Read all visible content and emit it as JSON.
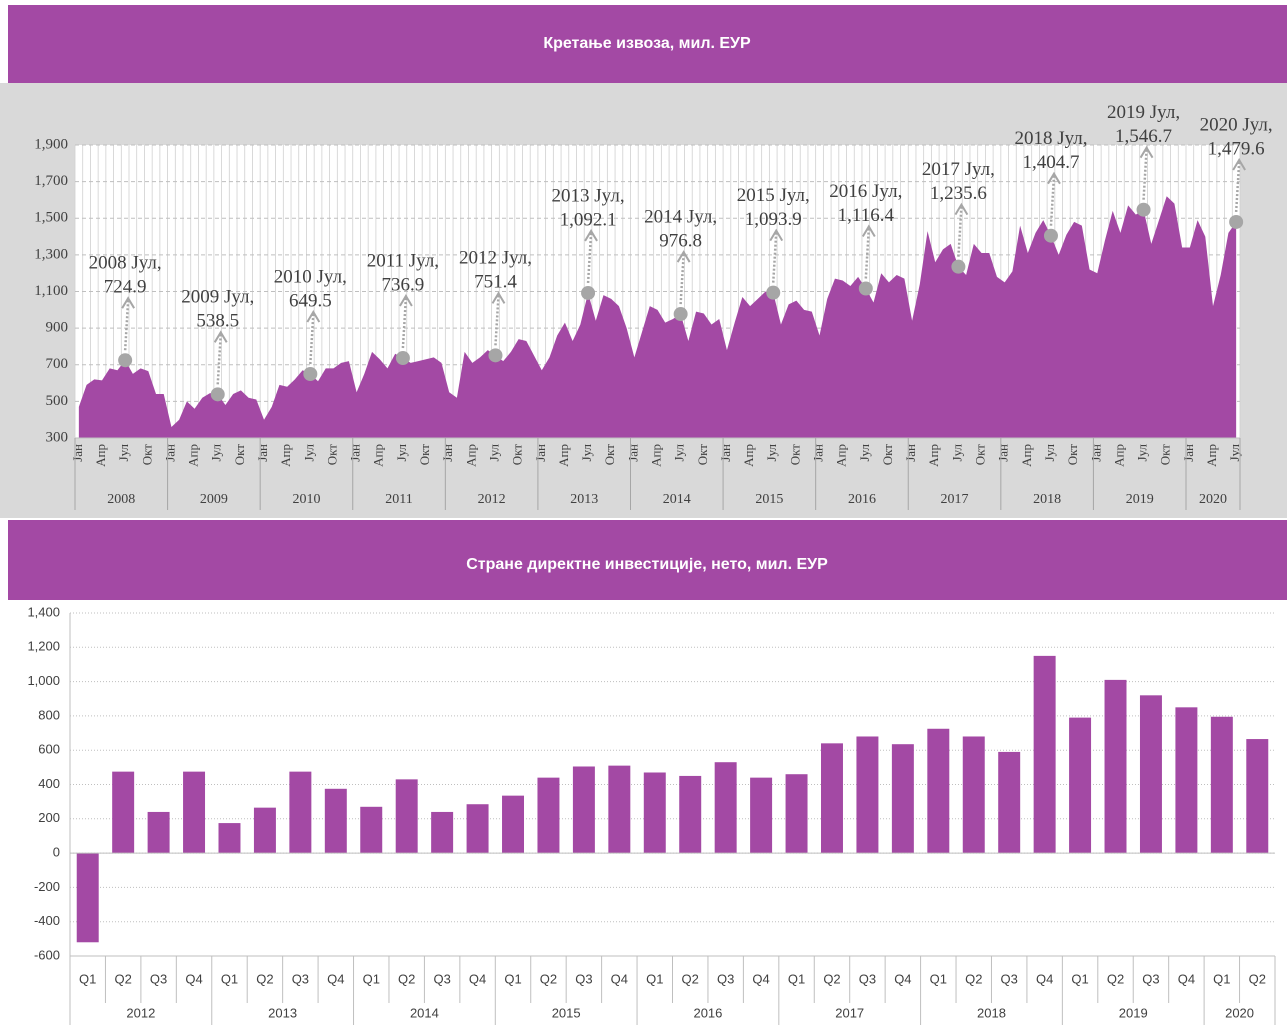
{
  "chart_data": [
    {
      "type": "area",
      "title": "Кретање извоза, мил. ЕУР",
      "color": "#a349a4",
      "marker_color": "#a6a6a6",
      "categories": [
        "Јан",
        null,
        null,
        "Апр",
        null,
        null,
        "Јул",
        null,
        null,
        "Окт",
        null,
        null,
        "Јан",
        null,
        null,
        "Апр",
        null,
        null,
        "Јул",
        null,
        null,
        "Окт",
        null,
        null,
        "Јан",
        null,
        null,
        "Апр",
        null,
        null,
        "Јул",
        null,
        null,
        "Окт",
        null,
        null,
        "Јан",
        null,
        null,
        "Апр",
        null,
        null,
        "Јул",
        null,
        null,
        "Окт",
        null,
        null,
        "Јан",
        null,
        null,
        "Апр",
        null,
        null,
        "Јул",
        null,
        null,
        "Окт",
        null,
        null,
        "Јан",
        null,
        null,
        "Апр",
        null,
        null,
        "Јул",
        null,
        null,
        "Окт",
        null,
        null,
        "Јан",
        null,
        null,
        "Апр",
        null,
        null,
        "Јул",
        null,
        null,
        "Окт",
        null,
        null,
        "Јан",
        null,
        null,
        "Апр",
        null,
        null,
        "Јул",
        null,
        null,
        "Окт",
        null,
        null,
        "Јан",
        null,
        null,
        "Апр",
        null,
        null,
        "Јул",
        null,
        null,
        "Окт",
        null,
        null,
        "Јан",
        null,
        null,
        "Апр",
        null,
        null,
        "Јул",
        null,
        null,
        "Окт",
        null,
        null,
        "Јан",
        null,
        null,
        "Апр",
        null,
        null,
        "Јул",
        null,
        null,
        "Окт",
        null,
        null,
        "Јан",
        null,
        null,
        "Апр",
        null,
        null,
        "Јул",
        null,
        null,
        "Окт",
        null,
        null,
        "Јан",
        null,
        null,
        "Апр",
        null,
        null,
        "Јул"
      ],
      "category_groups": [
        "2008",
        "2009",
        "2010",
        "2011",
        "2012",
        "2013",
        "2014",
        "2015",
        "2016",
        "2017",
        "2018",
        "2019",
        "2020"
      ],
      "values": [
        470,
        590,
        620,
        615,
        680,
        670,
        724.9,
        650,
        680,
        665,
        540,
        540,
        360,
        400,
        500,
        460,
        520,
        545,
        538.5,
        480,
        540,
        560,
        520,
        510,
        400,
        470,
        590,
        580,
        620,
        670,
        649.5,
        610,
        680,
        680,
        710,
        720,
        550,
        650,
        770,
        730,
        680,
        760,
        736.9,
        710,
        720,
        730,
        740,
        710,
        550,
        520,
        770,
        710,
        740,
        780,
        751.4,
        720,
        770,
        840,
        830,
        750,
        670,
        740,
        860,
        930,
        830,
        920,
        1092.1,
        940,
        1080,
        1060,
        1020,
        900,
        740,
        880,
        1020,
        1000,
        930,
        950,
        976.8,
        830,
        990,
        980,
        920,
        950,
        780,
        930,
        1070,
        1020,
        1060,
        1100,
        1093.9,
        920,
        1030,
        1050,
        1000,
        990,
        860,
        1060,
        1170,
        1160,
        1130,
        1180,
        1116.4,
        1040,
        1200,
        1150,
        1190,
        1170,
        940,
        1140,
        1430,
        1260,
        1330,
        1360,
        1235.6,
        1190,
        1360,
        1310,
        1310,
        1180,
        1150,
        1210,
        1460,
        1310,
        1420,
        1490,
        1404.7,
        1300,
        1410,
        1480,
        1460,
        1220,
        1200,
        1380,
        1540,
        1420,
        1570,
        1520,
        1546.7,
        1360,
        1490,
        1620,
        1580,
        1340,
        1340,
        1490,
        1400,
        1020,
        1190,
        1420,
        1479.6
      ],
      "value_labels": [
        null,
        null,
        null,
        null,
        null,
        null,
        "724.9",
        null,
        null,
        null,
        null,
        null,
        null,
        null,
        null,
        null,
        null,
        null,
        "538.5",
        null,
        null,
        null,
        null,
        null,
        null,
        null,
        null,
        null,
        null,
        null,
        "649.5",
        null,
        null,
        null,
        null,
        null,
        null,
        null,
        null,
        null,
        null,
        null,
        "736.9",
        null,
        null,
        null,
        null,
        null,
        null,
        null,
        null,
        null,
        null,
        null,
        "751.4",
        null,
        null,
        null,
        null,
        null,
        null,
        null,
        null,
        null,
        null,
        null,
        "1,092.1",
        null,
        null,
        null,
        null,
        null,
        null,
        null,
        null,
        null,
        null,
        null,
        "976.8",
        null,
        null,
        null,
        null,
        null,
        null,
        null,
        null,
        null,
        null,
        null,
        "1,093.9",
        null,
        null,
        null,
        null,
        null,
        null,
        null,
        null,
        null,
        null,
        null,
        "1,116.4",
        null,
        null,
        null,
        null,
        null,
        null,
        null,
        null,
        null,
        null,
        null,
        "1,235.6",
        null,
        null,
        null,
        null,
        null,
        null,
        null,
        null,
        null,
        null,
        null,
        "1,404.7",
        null,
        null,
        null,
        null,
        null,
        null,
        null,
        null,
        null,
        null,
        null,
        "1,546.7",
        null,
        null,
        null,
        null,
        null,
        null,
        null,
        null,
        null,
        null,
        null,
        "1,479.6"
      ],
      "annotations": [
        "2008 Јул,",
        "2009 Јул,",
        "2010 Јул,",
        "2011 Јул,",
        "2012 Јул,",
        "2013 Јул,",
        "2014 Јул,",
        "2015 Јул,",
        "2016 Јул,",
        "2017 Јул,",
        "2018 Јул,",
        "2019 Јул,",
        "2020 Јул,"
      ],
      "ylim": [
        300,
        1900
      ],
      "yticks": [
        300,
        500,
        700,
        900,
        {
          "value": 1100,
          "label": "1,100"
        },
        {
          "value": 1300,
          "label": "1,300"
        },
        {
          "value": 1500,
          "label": "1,500"
        },
        {
          "value": 1700,
          "label": "1,700"
        },
        {
          "value": 1900,
          "label": "1,900"
        }
      ],
      "grid": true
    },
    {
      "type": "bar",
      "title": "Стране директне инвестиције, нето, мил. ЕУР",
      "color": "#a349a4",
      "categories": [
        "Q1",
        "Q2",
        "Q3",
        "Q4",
        "Q1",
        "Q2",
        "Q3",
        "Q4",
        "Q1",
        "Q2",
        "Q3",
        "Q4",
        "Q1",
        "Q2",
        "Q3",
        "Q4",
        "Q1",
        "Q2",
        "Q3",
        "Q4",
        "Q1",
        "Q2",
        "Q3",
        "Q4",
        "Q1",
        "Q2",
        "Q3",
        "Q4",
        "Q1",
        "Q2",
        "Q3",
        "Q4",
        "Q1",
        "Q2"
      ],
      "category_groups": [
        "2012",
        "2013",
        "2014",
        "2015",
        "2016",
        "2017",
        "2018",
        "2019",
        "2020"
      ],
      "values": [
        -520,
        475,
        240,
        475,
        175,
        265,
        475,
        375,
        270,
        430,
        240,
        285,
        335,
        440,
        505,
        510,
        470,
        450,
        530,
        440,
        460,
        640,
        680,
        635,
        725,
        680,
        590,
        1150,
        790,
        1010,
        920,
        850,
        795,
        665
      ],
      "ylim": [
        -600,
        1400
      ],
      "yticks": [
        -600,
        -400,
        -200,
        0,
        200,
        400,
        600,
        800,
        {
          "value": 1000,
          "label": "1,000"
        },
        {
          "value": 1200,
          "label": "1,200"
        },
        {
          "value": 1400,
          "label": "1,400"
        }
      ],
      "grid": true
    }
  ]
}
